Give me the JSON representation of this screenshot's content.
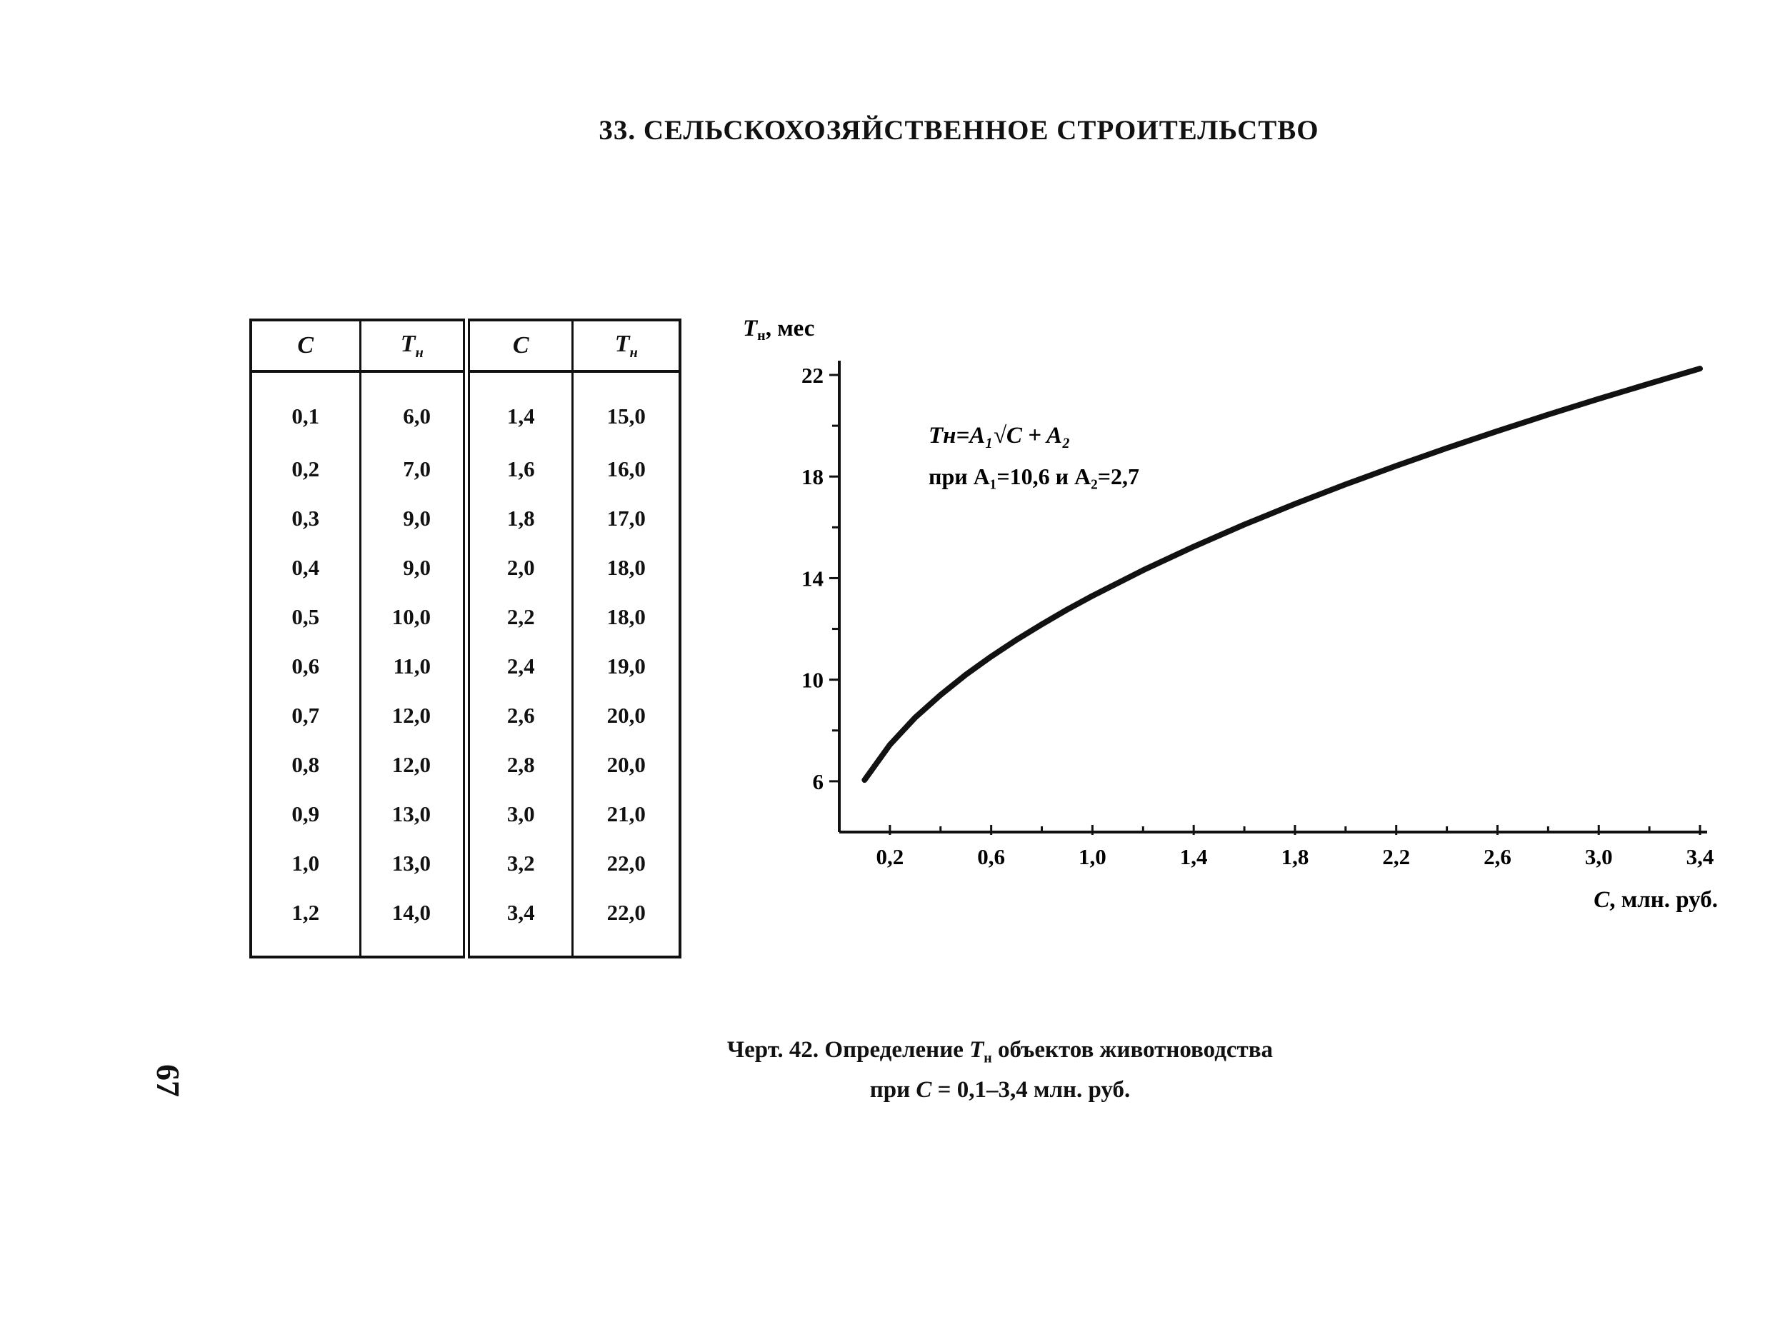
{
  "section_title": "33. СЕЛЬСКОХОЗЯЙСТВЕННОЕ СТРОИТЕЛЬСТВО",
  "table": {
    "headers": {
      "c": "C",
      "t": "T",
      "t_sub": "н"
    },
    "left_rows": [
      {
        "c": "0,1",
        "t": "6,0"
      },
      {
        "c": "0,2",
        "t": "7,0"
      },
      {
        "c": "0,3",
        "t": "9,0"
      },
      {
        "c": "0,4",
        "t": "9,0"
      },
      {
        "c": "0,5",
        "t": "10,0"
      },
      {
        "c": "0,6",
        "t": "11,0"
      },
      {
        "c": "0,7",
        "t": "12,0"
      },
      {
        "c": "0,8",
        "t": "12,0"
      },
      {
        "c": "0,9",
        "t": "13,0"
      },
      {
        "c": "1,0",
        "t": "13,0"
      },
      {
        "c": "1,2",
        "t": "14,0"
      }
    ],
    "right_rows": [
      {
        "c": "1,4",
        "t": "15,0"
      },
      {
        "c": "1,6",
        "t": "16,0"
      },
      {
        "c": "1,8",
        "t": "17,0"
      },
      {
        "c": "2,0",
        "t": "18,0"
      },
      {
        "c": "2,2",
        "t": "18,0"
      },
      {
        "c": "2,4",
        "t": "19,0"
      },
      {
        "c": "2,6",
        "t": "20,0"
      },
      {
        "c": "2,8",
        "t": "20,0"
      },
      {
        "c": "3,0",
        "t": "21,0"
      },
      {
        "c": "3,2",
        "t": "22,0"
      },
      {
        "c": "3,4",
        "t": "22,0"
      }
    ]
  },
  "chart_data": {
    "type": "line",
    "ylabel": "T",
    "ylabel_sub": "н",
    "ylabel_unit": ", мес",
    "xlabel": "C",
    "xlabel_unit": ", млн. руб.",
    "xlim": [
      0,
      3.4
    ],
    "ylim": [
      4,
      22
    ],
    "x_tick_labels": [
      "0,2",
      "0,6",
      "1,0",
      "1,4",
      "1,8",
      "2,2",
      "2,6",
      "3,0",
      "3,4"
    ],
    "x_tick_values": [
      0.2,
      0.6,
      1.0,
      1.4,
      1.8,
      2.2,
      2.6,
      3.0,
      3.4
    ],
    "x_minor_ticks": [
      0.4,
      0.8,
      1.2,
      1.6,
      2.0,
      2.4,
      2.8,
      3.2
    ],
    "y_tick_labels": [
      "6",
      "10",
      "14",
      "18",
      "22"
    ],
    "y_tick_values": [
      6,
      10,
      14,
      18,
      22
    ],
    "y_minor_ticks": [
      8,
      12,
      16,
      20
    ],
    "formula_line1": "Tн=A₁√C + A₂",
    "formula_line2": "при A₁=10,6 и A₂=2,7",
    "formula": {
      "A1": 10.6,
      "A2": 2.7
    },
    "series": [
      {
        "x": [
          0.1,
          0.2,
          0.3,
          0.4,
          0.5,
          0.6,
          0.7,
          0.8,
          0.9,
          1.0,
          1.2,
          1.4,
          1.6,
          1.8,
          2.0,
          2.2,
          2.4,
          2.6,
          2.8,
          3.0,
          3.2,
          3.4
        ],
        "y": [
          6.05,
          7.44,
          8.51,
          9.4,
          10.2,
          10.91,
          11.57,
          12.18,
          12.76,
          13.3,
          14.31,
          15.24,
          16.11,
          16.92,
          17.69,
          18.42,
          19.12,
          19.79,
          20.44,
          21.06,
          21.66,
          22.25
        ]
      }
    ]
  },
  "caption": {
    "line1_prefix": "Черт. 42. Определение ",
    "line1_sym": "T",
    "line1_sub": "н",
    "line1_suffix": " объектов животноводства",
    "line2_prefix": "при ",
    "line2_sym": "C",
    "line2_suffix": " = 0,1–3,4 млн. руб."
  },
  "page_number": "67"
}
